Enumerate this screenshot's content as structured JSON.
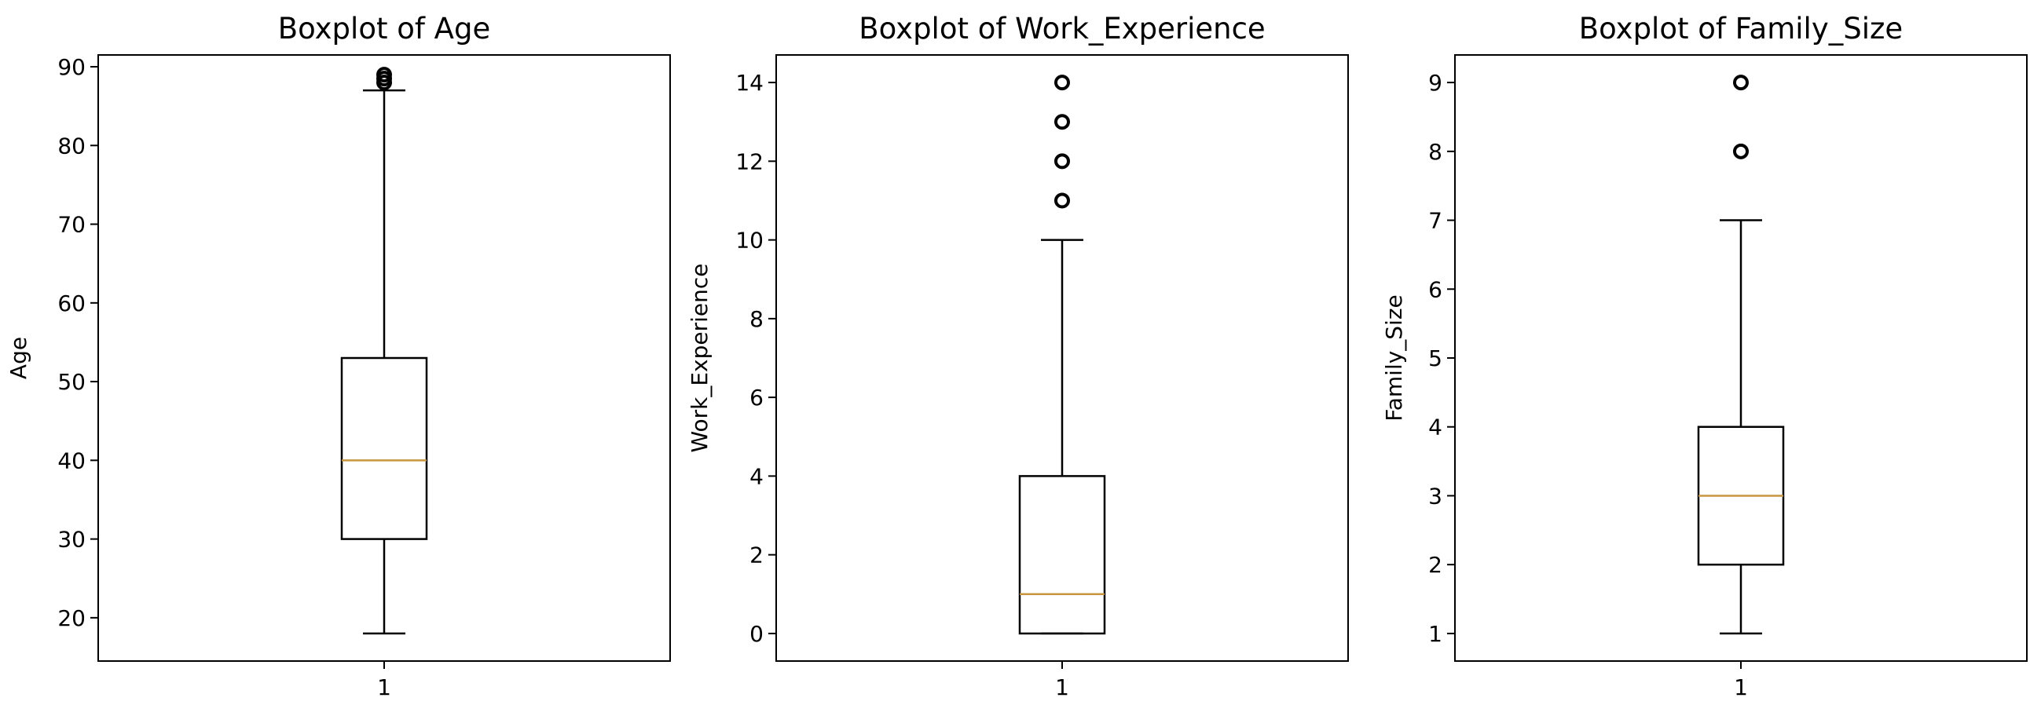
{
  "chart_data": [
    {
      "type": "boxplot",
      "title": "Boxplot of Age",
      "xlabel": "",
      "ylabel": "Age",
      "categories": [
        "1"
      ],
      "ylim": [
        14.5,
        91.5
      ],
      "yticks": [
        20,
        30,
        40,
        50,
        60,
        70,
        80,
        90
      ],
      "box": {
        "whisker_low": 18,
        "q1": 30,
        "median": 40,
        "q3": 53,
        "whisker_high": 87
      },
      "outliers": [
        88,
        88.5,
        89
      ]
    },
    {
      "type": "boxplot",
      "title": "Boxplot of Work_Experience",
      "xlabel": "",
      "ylabel": "Work_Experience",
      "categories": [
        "1"
      ],
      "ylim": [
        -0.7,
        14.7
      ],
      "yticks": [
        0,
        2,
        4,
        6,
        8,
        10,
        12,
        14
      ],
      "box": {
        "whisker_low": 0,
        "q1": 0,
        "median": 1,
        "q3": 4,
        "whisker_high": 10
      },
      "outliers": [
        11,
        12,
        13,
        14
      ]
    },
    {
      "type": "boxplot",
      "title": "Boxplot of Family_Size",
      "xlabel": "",
      "ylabel": "Family_Size",
      "categories": [
        "1"
      ],
      "ylim": [
        0.6,
        9.4
      ],
      "yticks": [
        1,
        2,
        3,
        4,
        5,
        6,
        7,
        8,
        9
      ],
      "box": {
        "whisker_low": 1,
        "q1": 2,
        "median": 3,
        "q3": 4,
        "whisker_high": 7
      },
      "outliers": [
        8,
        9
      ]
    }
  ],
  "colors": {
    "median": "#c8963e",
    "frame": "#000000",
    "box": "#000000"
  }
}
